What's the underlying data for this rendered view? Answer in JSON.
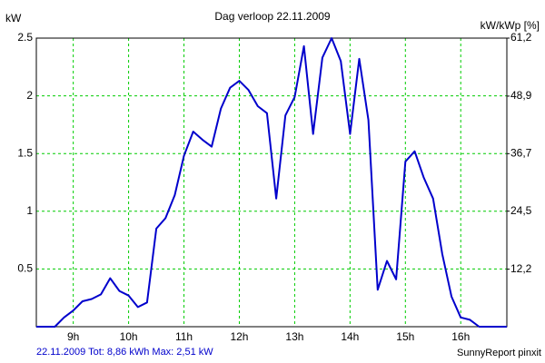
{
  "chart_data": {
    "type": "line",
    "title": "Dag  verloop 22.11.2009",
    "y_label": "kW",
    "y2_label": "kW/kWp [%]",
    "footer_left": "22.11.2009 Tot: 8,86 kWh Max: 2,51 kW",
    "footer_right": "SunnyReport pinxit",
    "x": [
      8.333,
      8.5,
      8.667,
      8.833,
      9,
      9.167,
      9.333,
      9.5,
      9.667,
      9.833,
      10,
      10.167,
      10.333,
      10.5,
      10.667,
      10.833,
      11,
      11.167,
      11.333,
      11.5,
      11.667,
      11.833,
      12,
      12.167,
      12.333,
      12.5,
      12.667,
      12.833,
      13,
      13.167,
      13.333,
      13.5,
      13.667,
      13.833,
      14,
      14.167,
      14.333,
      14.5,
      14.667,
      14.833,
      15,
      15.167,
      15.333,
      15.5,
      15.667,
      15.833,
      16,
      16.167,
      16.333,
      16.5,
      16.667,
      16.833
    ],
    "series": [
      {
        "color": "#0000cc",
        "values": [
          0,
          0,
          0,
          0.08,
          0.14,
          0.22,
          0.24,
          0.28,
          0.42,
          0.31,
          0.27,
          0.17,
          0.21,
          0.85,
          0.94,
          1.14,
          1.48,
          1.69,
          1.62,
          1.56,
          1.89,
          2.07,
          2.13,
          2.05,
          1.91,
          1.85,
          1.11,
          1.83,
          1.99,
          2.43,
          1.67,
          2.33,
          2.5,
          2.3,
          1.67,
          2.32,
          1.79,
          0.32,
          0.57,
          0.41,
          1.43,
          1.52,
          1.29,
          1.11,
          0.63,
          0.26,
          0.08,
          0.06,
          0,
          0,
          0,
          0
        ]
      }
    ],
    "xlim": [
      8.333,
      16.833
    ],
    "xticks": [
      {
        "value": 9,
        "label": "9h"
      },
      {
        "value": 10,
        "label": "10h"
      },
      {
        "value": 11,
        "label": "11h"
      },
      {
        "value": 12,
        "label": "12h"
      },
      {
        "value": 13,
        "label": "13h"
      },
      {
        "value": 14,
        "label": "14h"
      },
      {
        "value": 15,
        "label": "15h"
      },
      {
        "value": 16,
        "label": "16h"
      }
    ],
    "ylim": [
      0,
      2.5
    ],
    "yticks": [
      0.5,
      1,
      1.5,
      2,
      2.5
    ],
    "y2lim": [
      0,
      61.2
    ],
    "y2ticks": [
      {
        "value": 12.2,
        "label": "12,2"
      },
      {
        "value": 24.5,
        "label": "24,5"
      },
      {
        "value": 36.7,
        "label": "36,7"
      },
      {
        "value": 48.9,
        "label": "48,9"
      },
      {
        "value": 61.2,
        "label": "61,2"
      }
    ],
    "grid": true,
    "grid_color": "#00cc00"
  }
}
